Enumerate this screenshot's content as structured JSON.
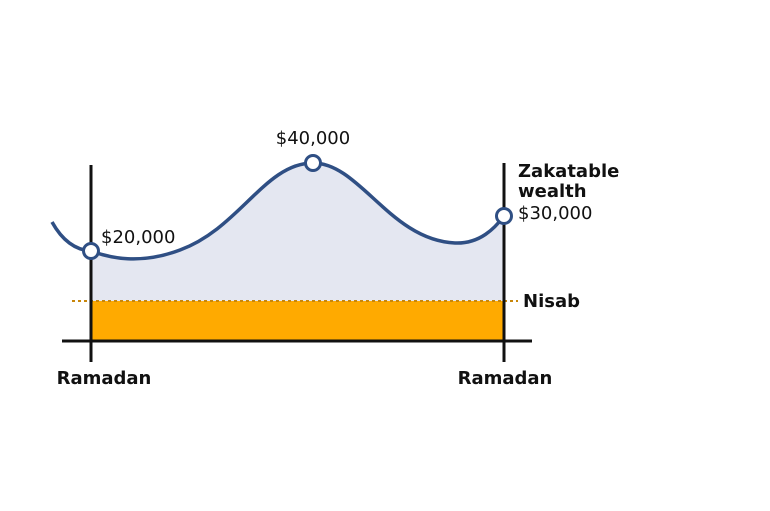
{
  "points": [
    {
      "label": "$20,000"
    },
    {
      "label": "$40,000"
    },
    {
      "label": "$30,000"
    }
  ],
  "series_label": {
    "line1": "Zakatable",
    "line2": "wealth"
  },
  "threshold_label": "Nisab",
  "axis_labels": [
    "Ramadan",
    "Ramadan"
  ]
}
